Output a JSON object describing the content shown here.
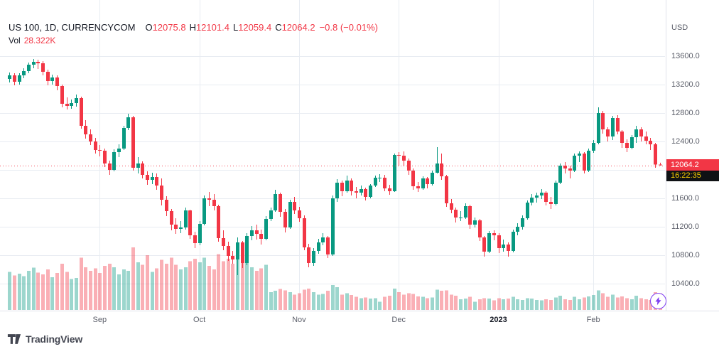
{
  "header": {
    "symbol_title": "US 100, 1D, CURRENCYCOM",
    "ohlc": {
      "o_label": "O",
      "o": "12075.8",
      "h_label": "H",
      "h": "12101.4",
      "l_label": "L",
      "l": "12059.4",
      "c_label": "C",
      "c": "12064.2",
      "change": "−0.8 (−0.01%)"
    },
    "vol_label": "Vol",
    "vol_value": "28.322K"
  },
  "price_axis": {
    "currency": "USD",
    "last_price": "12064.2",
    "countdown": "16:22:35"
  },
  "footer": {
    "logo_text": "TradingView"
  },
  "colors": {
    "up": "#089981",
    "down": "#f23645",
    "vol_up": "rgba(8,153,129,0.40)",
    "vol_down": "rgba(242,54,69,0.40)",
    "grid": "#e8ecf2",
    "separator": "#e0e3eb",
    "axis_text": "#5d606b",
    "legend_text": "#131722",
    "countdown_bg": "#0f1114",
    "countdown_text": "#fdd000",
    "accent_icon": "#7e3ff2"
  },
  "chart_data": {
    "type": "candlestick+volume",
    "symbol": "US 100",
    "interval": "1D",
    "exchange": "CURRENCYCOM",
    "last_close": 12064.2,
    "last_bar": {
      "open": 12075.8,
      "high": 12101.4,
      "low": 12059.4,
      "close": 12064.2,
      "change": -0.8,
      "change_pct": -0.01,
      "volume_k": 28.322
    },
    "visible_price_range": [
      10300,
      14090
    ],
    "grid_prices": [
      13600,
      13200,
      12800,
      12400,
      12000,
      11600,
      11200,
      10800,
      10400
    ],
    "price_labels": [
      13600,
      13200,
      12800,
      12400,
      11600,
      11200,
      10800,
      10400
    ],
    "month_breaks": [
      {
        "label": "Sep",
        "index": 19
      },
      {
        "label": "Oct",
        "index": 40
      },
      {
        "label": "Nov",
        "index": 61
      },
      {
        "label": "Dec",
        "index": 82
      },
      {
        "label": "2023",
        "index": 103,
        "major": true
      },
      {
        "label": "Feb",
        "index": 123
      }
    ],
    "candle_format": [
      "open",
      "high",
      "low",
      "close",
      "volume_k"
    ],
    "candles": [
      [
        13280,
        13370,
        13230,
        13330,
        64
      ],
      [
        13330,
        13360,
        13190,
        13240,
        58
      ],
      [
        13240,
        13360,
        13200,
        13330,
        61
      ],
      [
        13330,
        13430,
        13290,
        13390,
        57
      ],
      [
        13390,
        13510,
        13360,
        13480,
        66
      ],
      [
        13480,
        13560,
        13430,
        13520,
        71
      ],
      [
        13520,
        13550,
        13420,
        13500,
        63
      ],
      [
        13500,
        13530,
        13330,
        13380,
        60
      ],
      [
        13380,
        13410,
        13190,
        13250,
        68
      ],
      [
        13250,
        13340,
        13200,
        13300,
        55
      ],
      [
        13300,
        13330,
        13120,
        13180,
        62
      ],
      [
        13180,
        13200,
        12880,
        12930,
        78
      ],
      [
        12930,
        13020,
        12850,
        12900,
        64
      ],
      [
        12900,
        12990,
        12860,
        12940,
        52
      ],
      [
        12940,
        13060,
        12890,
        13010,
        54
      ],
      [
        13010,
        13030,
        12580,
        12620,
        88
      ],
      [
        12620,
        12700,
        12440,
        12500,
        72
      ],
      [
        12500,
        12570,
        12350,
        12400,
        66
      ],
      [
        12400,
        12450,
        12230,
        12280,
        70
      ],
      [
        12280,
        12350,
        12190,
        12270,
        62
      ],
      [
        12270,
        12300,
        12040,
        12090,
        74
      ],
      [
        12090,
        12130,
        11930,
        12000,
        78
      ],
      [
        12000,
        12290,
        11980,
        12250,
        72
      ],
      [
        12250,
        12360,
        12180,
        12300,
        60
      ],
      [
        12300,
        12620,
        12280,
        12590,
        68
      ],
      [
        12590,
        12790,
        12560,
        12740,
        66
      ],
      [
        12740,
        12760,
        11990,
        12030,
        105
      ],
      [
        12030,
        12180,
        11950,
        12090,
        80
      ],
      [
        12090,
        12120,
        11880,
        11930,
        76
      ],
      [
        11930,
        11980,
        11790,
        11860,
        92
      ],
      [
        11860,
        11960,
        11800,
        11900,
        64
      ],
      [
        11900,
        11950,
        11720,
        11780,
        70
      ],
      [
        11780,
        11880,
        11500,
        11580,
        84
      ],
      [
        11580,
        11630,
        11350,
        11420,
        78
      ],
      [
        11420,
        11450,
        11150,
        11230,
        88
      ],
      [
        11230,
        11320,
        11100,
        11170,
        76
      ],
      [
        11170,
        11280,
        11110,
        11190,
        68
      ],
      [
        11190,
        11470,
        11160,
        11430,
        72
      ],
      [
        11430,
        11440,
        11030,
        11080,
        82
      ],
      [
        11080,
        11130,
        10900,
        10970,
        86
      ],
      [
        10970,
        11280,
        10940,
        11240,
        80
      ],
      [
        11240,
        11640,
        11220,
        11600,
        88
      ],
      [
        11600,
        11690,
        11490,
        11580,
        74
      ],
      [
        11580,
        11660,
        11430,
        11490,
        68
      ],
      [
        11490,
        11510,
        10990,
        11040,
        94
      ],
      [
        11040,
        11150,
        10870,
        10930,
        82
      ],
      [
        10930,
        10990,
        10720,
        10790,
        86
      ],
      [
        10790,
        10860,
        10680,
        10740,
        78
      ],
      [
        10740,
        11050,
        10520,
        10980,
        110
      ],
      [
        10980,
        11000,
        10620,
        10690,
        96
      ],
      [
        10690,
        11110,
        10660,
        11070,
        84
      ],
      [
        11070,
        11210,
        11010,
        11150,
        72
      ],
      [
        11150,
        11230,
        11020,
        11100,
        66
      ],
      [
        11100,
        11160,
        10950,
        11030,
        70
      ],
      [
        11030,
        11350,
        11010,
        11310,
        76
      ],
      [
        11310,
        11470,
        11280,
        11430,
        30
      ],
      [
        11430,
        11720,
        11410,
        11660,
        32
      ],
      [
        11660,
        11680,
        11340,
        11410,
        35
      ],
      [
        11410,
        11450,
        11120,
        11190,
        33
      ],
      [
        11190,
        11580,
        11170,
        11550,
        30
      ],
      [
        11550,
        11620,
        11380,
        11430,
        26
      ],
      [
        11430,
        11480,
        11270,
        11320,
        28
      ],
      [
        11320,
        11360,
        10870,
        10910,
        34
      ],
      [
        10910,
        10960,
        10630,
        10690,
        36
      ],
      [
        10690,
        10900,
        10650,
        10860,
        30
      ],
      [
        10860,
        11030,
        10820,
        10980,
        26
      ],
      [
        10980,
        11110,
        10940,
        11050,
        27
      ],
      [
        11050,
        11070,
        10760,
        10810,
        32
      ],
      [
        10810,
        11640,
        10790,
        11600,
        42
      ],
      [
        11600,
        11870,
        11550,
        11820,
        38
      ],
      [
        11820,
        11850,
        11630,
        11700,
        26
      ],
      [
        11700,
        11920,
        11680,
        11850,
        28
      ],
      [
        11850,
        11880,
        11640,
        11700,
        25
      ],
      [
        11700,
        11760,
        11600,
        11680,
        22
      ],
      [
        11680,
        11780,
        11640,
        11730,
        20
      ],
      [
        11730,
        11750,
        11570,
        11620,
        21
      ],
      [
        11620,
        11800,
        11600,
        11780,
        19
      ],
      [
        11780,
        11920,
        11760,
        11890,
        20
      ],
      [
        11890,
        11940,
        11830,
        11890,
        14
      ],
      [
        11890,
        11930,
        11700,
        11740,
        22
      ],
      [
        11740,
        11790,
        11650,
        11700,
        24
      ],
      [
        11700,
        12230,
        11690,
        12210,
        36
      ],
      [
        12210,
        12250,
        12060,
        12200,
        30
      ],
      [
        12200,
        12260,
        12050,
        12130,
        26
      ],
      [
        12130,
        12160,
        11930,
        11990,
        28
      ],
      [
        11990,
        12020,
        11720,
        11770,
        27
      ],
      [
        11770,
        11830,
        11690,
        11740,
        23
      ],
      [
        11740,
        11910,
        11720,
        11880,
        22
      ],
      [
        11880,
        11900,
        11740,
        11800,
        20
      ],
      [
        11800,
        11990,
        11780,
        11960,
        21
      ],
      [
        11960,
        12320,
        11950,
        12090,
        34
      ],
      [
        12090,
        12230,
        11860,
        11910,
        32
      ],
      [
        11910,
        11930,
        11480,
        11530,
        33
      ],
      [
        11530,
        11590,
        11390,
        11440,
        26
      ],
      [
        11440,
        11470,
        11260,
        11330,
        24
      ],
      [
        11330,
        11420,
        11280,
        11330,
        18
      ],
      [
        11330,
        11530,
        11310,
        11490,
        19
      ],
      [
        11490,
        11510,
        11170,
        11230,
        22
      ],
      [
        11230,
        11330,
        11190,
        11290,
        14
      ],
      [
        11290,
        11310,
        11000,
        11050,
        18
      ],
      [
        11050,
        11070,
        10780,
        10850,
        20
      ],
      [
        10850,
        11140,
        10830,
        11110,
        19
      ],
      [
        11110,
        11150,
        11010,
        11080,
        16
      ],
      [
        11080,
        11110,
        10830,
        10900,
        20
      ],
      [
        10900,
        11020,
        10850,
        10950,
        18
      ],
      [
        10950,
        10980,
        10780,
        10860,
        19
      ],
      [
        10860,
        11160,
        10840,
        11130,
        22
      ],
      [
        11130,
        11250,
        11080,
        11200,
        18
      ],
      [
        11200,
        11360,
        11160,
        11320,
        17
      ],
      [
        11320,
        11570,
        11300,
        11540,
        20
      ],
      [
        11540,
        11660,
        11500,
        11610,
        19
      ],
      [
        11610,
        11680,
        11540,
        11640,
        17
      ],
      [
        11640,
        11730,
        11590,
        11680,
        16
      ],
      [
        11680,
        11700,
        11500,
        11550,
        18
      ],
      [
        11550,
        11620,
        11450,
        11520,
        17
      ],
      [
        11520,
        11850,
        11500,
        11820,
        21
      ],
      [
        11820,
        12090,
        11800,
        12060,
        24
      ],
      [
        12060,
        12110,
        11950,
        12020,
        18
      ],
      [
        12020,
        12060,
        11880,
        11990,
        17
      ],
      [
        11990,
        12230,
        11970,
        12200,
        22
      ],
      [
        12200,
        12260,
        12110,
        12230,
        18
      ],
      [
        12230,
        12250,
        11950,
        11990,
        21
      ],
      [
        11990,
        12300,
        11970,
        12270,
        23
      ],
      [
        12270,
        12420,
        12240,
        12380,
        25
      ],
      [
        12380,
        12880,
        12360,
        12800,
        33
      ],
      [
        12800,
        12830,
        12510,
        12570,
        28
      ],
      [
        12570,
        12600,
        12400,
        12470,
        22
      ],
      [
        12470,
        12760,
        12420,
        12730,
        26
      ],
      [
        12730,
        12770,
        12500,
        12540,
        21
      ],
      [
        12540,
        12560,
        12310,
        12380,
        23
      ],
      [
        12380,
        12430,
        12250,
        12310,
        20
      ],
      [
        12310,
        12490,
        12290,
        12460,
        18
      ],
      [
        12460,
        12620,
        12380,
        12570,
        24
      ],
      [
        12570,
        12600,
        12400,
        12470,
        20
      ],
      [
        12470,
        12540,
        12360,
        12410,
        18
      ],
      [
        12410,
        12450,
        12280,
        12360,
        17
      ],
      [
        12360,
        12380,
        12030,
        12076,
        30
      ],
      [
        12075.8,
        12101.4,
        12059.4,
        12064.2,
        28.322
      ]
    ]
  }
}
